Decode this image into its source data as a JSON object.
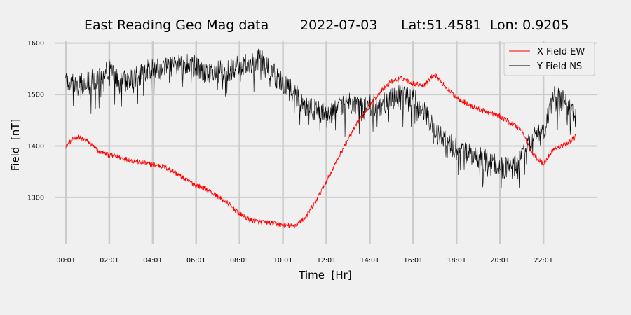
{
  "chart_data": {
    "type": "line",
    "title": {
      "main": "East Reading Geo Mag data",
      "date": "2022-07-03",
      "location": "Lat:51.4581  Lon: 0.9205"
    },
    "xlabel": "Time  [Hr]",
    "ylabel": "Field  [nT]",
    "xlim": [
      -0.5,
      24.5
    ],
    "ylim": [
      1210,
      1605
    ],
    "x_ticks": [
      {
        "value": 0.0167,
        "label": "00:01"
      },
      {
        "value": 2.0167,
        "label": "02:01"
      },
      {
        "value": 4.0167,
        "label": "04:01"
      },
      {
        "value": 6.0167,
        "label": "06:01"
      },
      {
        "value": 8.0167,
        "label": "08:01"
      },
      {
        "value": 10.0167,
        "label": "10:01"
      },
      {
        "value": 12.0167,
        "label": "12:01"
      },
      {
        "value": 14.0167,
        "label": "14:01"
      },
      {
        "value": 16.0167,
        "label": "16:01"
      },
      {
        "value": 18.0167,
        "label": "18:01"
      },
      {
        "value": 20.0167,
        "label": "20:01"
      },
      {
        "value": 22.0167,
        "label": "22:01"
      }
    ],
    "y_ticks": [
      {
        "value": 1300,
        "label": "1300"
      },
      {
        "value": 1400,
        "label": "1400"
      },
      {
        "value": 1500,
        "label": "1500"
      },
      {
        "value": 1600,
        "label": "1600"
      }
    ],
    "grid": true,
    "legend_position": "top-right",
    "series": [
      {
        "name": "X Field EW",
        "color": "#ff0000",
        "x": [
          0,
          0.5,
          1,
          1.5,
          2,
          2.5,
          3,
          3.5,
          4,
          4.5,
          5,
          5.5,
          6,
          6.5,
          7,
          7.5,
          8,
          8.5,
          9,
          9.5,
          10,
          10.5,
          11,
          11.5,
          12,
          12.5,
          13,
          13.5,
          14,
          14.5,
          15,
          15.5,
          16,
          16.5,
          17,
          17.5,
          18,
          18.5,
          19,
          19.5,
          20,
          20.5,
          21,
          21.5,
          22,
          22.5,
          23,
          23.5
        ],
        "y": [
          1400,
          1418,
          1410,
          1390,
          1382,
          1378,
          1372,
          1368,
          1364,
          1360,
          1350,
          1335,
          1324,
          1316,
          1302,
          1288,
          1268,
          1256,
          1252,
          1250,
          1246,
          1244,
          1258,
          1290,
          1330,
          1372,
          1412,
          1448,
          1478,
          1505,
          1525,
          1532,
          1522,
          1518,
          1540,
          1515,
          1495,
          1482,
          1472,
          1465,
          1458,
          1445,
          1432,
          1385,
          1365,
          1395,
          1402,
          1418
        ],
        "noise": 5
      },
      {
        "name": "Y Field NS",
        "color": "#000000",
        "x": [
          0,
          0.5,
          1,
          1.5,
          2,
          2.5,
          3,
          3.5,
          4,
          4.5,
          5,
          5.5,
          6,
          6.5,
          7,
          7.5,
          8,
          8.5,
          9,
          9.5,
          10,
          10.5,
          11,
          11.5,
          12,
          12.5,
          13,
          13.5,
          14,
          14.5,
          15,
          15.5,
          16,
          16.5,
          17,
          17.5,
          18,
          18.5,
          19,
          19.5,
          20,
          20.5,
          21,
          21.5,
          22,
          22.5,
          23,
          23.5
        ],
        "y": [
          1530,
          1515,
          1525,
          1535,
          1550,
          1522,
          1530,
          1540,
          1550,
          1548,
          1555,
          1558,
          1555,
          1540,
          1545,
          1545,
          1555,
          1560,
          1570,
          1545,
          1520,
          1505,
          1480,
          1470,
          1460,
          1475,
          1485,
          1475,
          1480,
          1478,
          1490,
          1505,
          1495,
          1470,
          1430,
          1410,
          1395,
          1385,
          1380,
          1368,
          1360,
          1355,
          1375,
          1415,
          1425,
          1495,
          1485,
          1455
        ],
        "noise": 22
      }
    ]
  }
}
